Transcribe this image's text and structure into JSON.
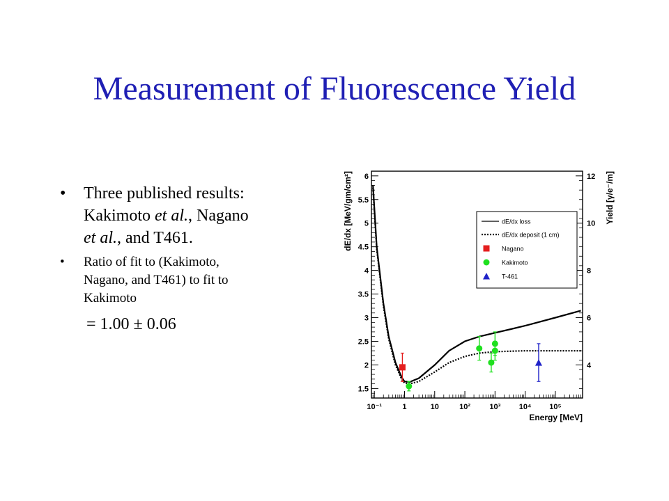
{
  "slide": {
    "title": "Measurement of Fluorescence Yield",
    "bullets": [
      {
        "line1": "Three published results:",
        "line2a": "Kakimoto ",
        "line2b": "et al.",
        "line2c": ", Nagano",
        "line3a": "et al.",
        "line3b": ", and T461."
      },
      {
        "line1": "Ratio of fit to (Kakimoto,",
        "line2": "Nagano, and T461) to fit to",
        "line3": "Kakimoto"
      }
    ],
    "result": "= 1.00 ± 0.06"
  },
  "chart_data": {
    "type": "line",
    "xlabel": "Energy [MeV]",
    "ylabel": "dE/dx [MeV/gm/cm²]",
    "y2label": "Yield [γ/e⁻/m]",
    "xscale": "log",
    "xlim": [
      0.08,
      800000
    ],
    "ylim": [
      1.3,
      6.1
    ],
    "y2lim": [
      2.6,
      12.2
    ],
    "x_ticks": [
      "10⁻¹",
      "1",
      "10",
      "10²",
      "10³",
      "10⁴",
      "10⁵"
    ],
    "y_ticks": [
      "1.5",
      "2",
      "2.5",
      "3",
      "3.5",
      "4",
      "4.5",
      "5",
      "5.5",
      "6"
    ],
    "y2_ticks": [
      "4",
      "6",
      "8",
      "10",
      "12"
    ],
    "legend_position": "upper-right",
    "legend": [
      "dE/dx loss",
      "dE/dx deposit (1 cm)",
      "Nagano",
      "Kakimoto",
      "T-461"
    ],
    "colors": {
      "nagano": "#e41e1e",
      "kakimoto": "#1fe01f",
      "t461": "#1f22c8",
      "curve": "#000000",
      "title": "#1f1fb4"
    },
    "series": [
      {
        "name": "dE/dx loss",
        "style": "solid",
        "x": [
          0.09,
          0.12,
          0.2,
          0.3,
          0.5,
          0.8,
          1.0,
          1.5,
          3,
          10,
          30,
          100,
          300,
          1000,
          3000,
          10000,
          100000,
          700000
        ],
        "y": [
          5.8,
          4.5,
          3.3,
          2.6,
          2.05,
          1.74,
          1.65,
          1.64,
          1.72,
          2.0,
          2.3,
          2.5,
          2.6,
          2.68,
          2.75,
          2.83,
          3.0,
          3.15
        ]
      },
      {
        "name": "dE/dx deposit (1 cm)",
        "style": "dotted",
        "x": [
          0.09,
          0.12,
          0.2,
          0.3,
          0.5,
          0.8,
          1.0,
          1.5,
          3,
          10,
          30,
          100,
          300,
          1000,
          3000,
          10000,
          100000,
          700000
        ],
        "y": [
          5.75,
          4.45,
          3.25,
          2.55,
          2.0,
          1.7,
          1.62,
          1.6,
          1.65,
          1.85,
          2.05,
          2.18,
          2.25,
          2.28,
          2.29,
          2.3,
          2.3,
          2.3
        ]
      }
    ],
    "points": [
      {
        "name": "Nagano",
        "shape": "square",
        "x": [
          0.85
        ],
        "y": [
          1.95
        ],
        "err": [
          0.3
        ]
      },
      {
        "name": "Kakimoto",
        "shape": "circle",
        "x": [
          1.4,
          300,
          750,
          1000,
          1000
        ],
        "y": [
          1.55,
          2.35,
          2.05,
          2.3,
          2.45
        ],
        "err": [
          0.1,
          0.25,
          0.2,
          0.2,
          0.25
        ]
      },
      {
        "name": "T-461",
        "shape": "triangle",
        "x": [
          28000
        ],
        "y": [
          2.05
        ],
        "err": [
          0.4
        ]
      }
    ]
  }
}
